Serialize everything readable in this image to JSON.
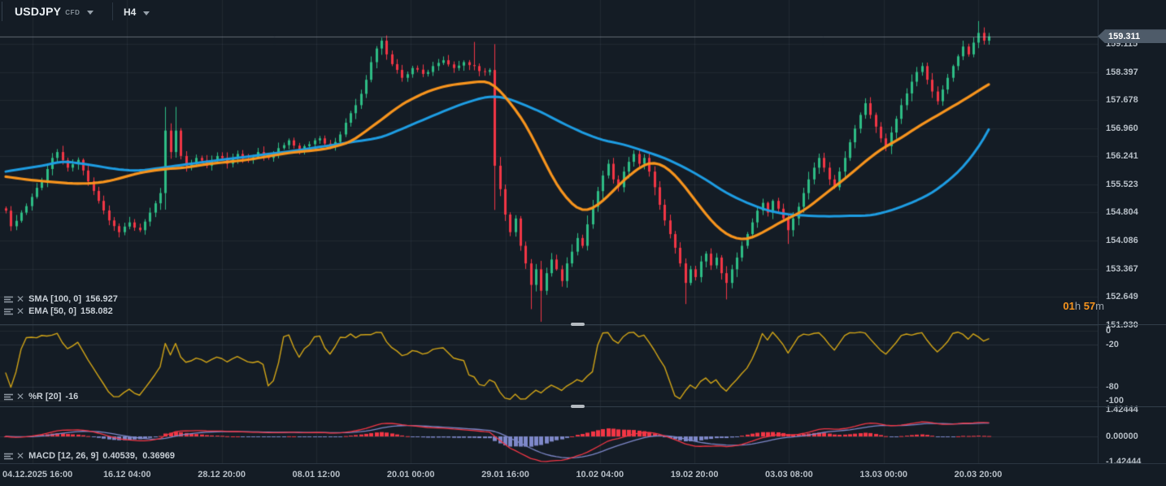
{
  "toolbar": {
    "symbol": "USDJPY",
    "symbol_type": "CFD",
    "timeframe": "H4"
  },
  "indicators": {
    "sma": {
      "label": "SMA [100, 0]",
      "value": "156.927"
    },
    "ema": {
      "label": "EMA [50, 0]",
      "value": "158.082"
    },
    "wpr": {
      "label": "%R [20]",
      "value": "-16"
    },
    "macd": {
      "label": "MACD [12, 26, 9]",
      "value": "0.40539,  0.36969"
    }
  },
  "countdown": {
    "h_val": "01",
    "h_unit": "h ",
    "m_val": "57",
    "m_unit": "m"
  },
  "price_axis": {
    "current_price": "159.311",
    "labels": [
      "159.115",
      "158.397",
      "157.678",
      "156.960",
      "156.241",
      "155.523",
      "154.804",
      "154.086",
      "153.367",
      "152.649",
      "151.930"
    ]
  },
  "wpr_axis": [
    [
      "0",
      0
    ],
    [
      "-20",
      -20
    ],
    [
      "-80",
      -80
    ],
    [
      "-100",
      -100
    ]
  ],
  "macd_axis": [
    [
      "1.42444",
      1.42444
    ],
    [
      "0.00000",
      0
    ],
    [
      "-1.42444",
      -1.42444
    ]
  ],
  "time_axis": [
    "04.12.2025 16:00",
    "16.12 04:00",
    "28.12 20:00",
    "08.01 12:00",
    "20.01 00:00",
    "29.01 16:00",
    "10.02 04:00",
    "19.02 20:00",
    "03.03 08:00",
    "13.03 00:00",
    "20.03 20:00"
  ],
  "colors": {
    "background": "#141c25",
    "grid": "rgba(160,176,192,0.09)",
    "grid_strong": "rgba(160,176,192,0.14)",
    "bull": "#2ebd85",
    "bear": "#f23645",
    "sma": "#1e9de3",
    "ema": "#f7941d",
    "wpr": "#d2a517",
    "macd_line": "#f23645",
    "macd_signal": "#7e88c9",
    "hist_pos": "#f23645",
    "hist_neg": "#7e88c9",
    "price_line": "rgba(190,200,210,0.45)",
    "price_tag_bg": "#4e5b69",
    "timer": "#f7941d"
  },
  "chart_data": {
    "type": "candlestick",
    "symbol": "USDJPY",
    "timeframe": "H4",
    "bars": 192,
    "price_axis_values": [
      159.115,
      158.397,
      157.678,
      156.96,
      156.241,
      155.523,
      154.804,
      154.086,
      153.367,
      152.649,
      151.93
    ],
    "current_price": 159.311,
    "overlays": [
      {
        "name": "SMA",
        "period": 100,
        "last": 156.927
      },
      {
        "name": "EMA",
        "period": 50,
        "last": 158.082
      }
    ],
    "wpr": {
      "period": 20,
      "last": -16,
      "scale": [
        0,
        -20,
        -80,
        -100
      ]
    },
    "macd": {
      "params": [
        12,
        26,
        9
      ],
      "last": 0.40539,
      "signal_last": 0.36969,
      "scale_max": 1.42444
    },
    "close_anchors": [
      [
        0,
        154.85
      ],
      [
        1,
        154.45
      ],
      [
        3,
        154.8
      ],
      [
        5,
        155.2
      ],
      [
        7,
        155.6
      ],
      [
        9,
        156.2
      ],
      [
        10,
        156.35
      ],
      [
        12,
        155.95
      ],
      [
        14,
        156.15
      ],
      [
        16,
        155.6
      ],
      [
        18,
        155.1
      ],
      [
        20,
        154.6
      ],
      [
        22,
        154.3
      ],
      [
        24,
        154.55
      ],
      [
        26,
        154.35
      ],
      [
        28,
        154.8
      ],
      [
        30,
        155.3
      ],
      [
        31,
        156.9
      ],
      [
        32,
        156.35
      ],
      [
        33,
        156.9
      ],
      [
        34,
        156.25
      ],
      [
        35,
        156.0
      ],
      [
        37,
        156.2
      ],
      [
        39,
        156.0
      ],
      [
        41,
        156.25
      ],
      [
        43,
        156.05
      ],
      [
        45,
        156.3
      ],
      [
        47,
        156.15
      ],
      [
        49,
        156.35
      ],
      [
        51,
        156.2
      ],
      [
        53,
        156.45
      ],
      [
        55,
        156.65
      ],
      [
        57,
        156.4
      ],
      [
        59,
        156.55
      ],
      [
        61,
        156.7
      ],
      [
        63,
        156.5
      ],
      [
        65,
        156.8
      ],
      [
        66,
        157.1
      ],
      [
        68,
        157.55
      ],
      [
        70,
        158.2
      ],
      [
        71,
        158.65
      ],
      [
        72,
        159.0
      ],
      [
        73,
        159.2
      ],
      [
        74,
        158.85
      ],
      [
        75,
        158.6
      ],
      [
        77,
        158.25
      ],
      [
        79,
        158.5
      ],
      [
        81,
        158.35
      ],
      [
        83,
        158.55
      ],
      [
        85,
        158.7
      ],
      [
        87,
        158.5
      ],
      [
        89,
        158.65
      ],
      [
        91,
        158.55
      ],
      [
        93,
        158.4
      ],
      [
        94,
        158.45
      ],
      [
        95,
        156.0
      ],
      [
        96,
        155.4
      ],
      [
        97,
        154.75
      ],
      [
        98,
        154.3
      ],
      [
        99,
        154.65
      ],
      [
        100,
        153.95
      ],
      [
        101,
        153.5
      ],
      [
        102,
        152.95
      ],
      [
        103,
        153.35
      ],
      [
        104,
        152.8
      ],
      [
        105,
        153.25
      ],
      [
        106,
        153.6
      ],
      [
        107,
        153.35
      ],
      [
        108,
        153.05
      ],
      [
        109,
        153.5
      ],
      [
        110,
        153.8
      ],
      [
        111,
        154.15
      ],
      [
        112,
        153.95
      ],
      [
        113,
        154.5
      ],
      [
        114,
        154.95
      ],
      [
        115,
        155.35
      ],
      [
        116,
        155.75
      ],
      [
        117,
        156.05
      ],
      [
        118,
        155.65
      ],
      [
        119,
        155.45
      ],
      [
        120,
        155.85
      ],
      [
        121,
        156.1
      ],
      [
        122,
        156.3
      ],
      [
        123,
        156.05
      ],
      [
        124,
        156.2
      ],
      [
        125,
        155.85
      ],
      [
        126,
        155.45
      ],
      [
        127,
        155.0
      ],
      [
        128,
        154.6
      ],
      [
        129,
        154.25
      ],
      [
        130,
        153.9
      ],
      [
        131,
        153.5
      ],
      [
        132,
        153.0
      ],
      [
        133,
        153.35
      ],
      [
        134,
        153.15
      ],
      [
        135,
        153.55
      ],
      [
        136,
        153.75
      ],
      [
        137,
        153.45
      ],
      [
        138,
        153.65
      ],
      [
        139,
        153.25
      ],
      [
        140,
        153.0
      ],
      [
        141,
        153.35
      ],
      [
        142,
        153.65
      ],
      [
        143,
        153.95
      ],
      [
        144,
        154.25
      ],
      [
        145,
        154.55
      ],
      [
        146,
        154.85
      ],
      [
        147,
        155.05
      ],
      [
        148,
        154.8
      ],
      [
        149,
        155.1
      ],
      [
        150,
        154.9
      ],
      [
        151,
        154.65
      ],
      [
        152,
        154.35
      ],
      [
        153,
        154.65
      ],
      [
        154,
        154.95
      ],
      [
        155,
        155.3
      ],
      [
        156,
        155.65
      ],
      [
        157,
        155.95
      ],
      [
        158,
        156.2
      ],
      [
        159,
        155.95
      ],
      [
        160,
        155.65
      ],
      [
        161,
        155.45
      ],
      [
        162,
        155.85
      ],
      [
        163,
        156.2
      ],
      [
        164,
        156.6
      ],
      [
        165,
        156.95
      ],
      [
        166,
        157.3
      ],
      [
        167,
        157.6
      ],
      [
        168,
        157.3
      ],
      [
        169,
        157.0
      ],
      [
        170,
        156.7
      ],
      [
        171,
        156.5
      ],
      [
        172,
        156.85
      ],
      [
        173,
        157.2
      ],
      [
        174,
        157.55
      ],
      [
        175,
        157.85
      ],
      [
        176,
        158.15
      ],
      [
        177,
        158.4
      ],
      [
        178,
        158.55
      ],
      [
        179,
        158.2
      ],
      [
        180,
        157.9
      ],
      [
        181,
        157.65
      ],
      [
        182,
        157.95
      ],
      [
        183,
        158.25
      ],
      [
        184,
        158.55
      ],
      [
        185,
        158.8
      ],
      [
        186,
        159.05
      ],
      [
        187,
        158.85
      ],
      [
        188,
        159.15
      ],
      [
        189,
        159.4
      ],
      [
        190,
        159.2
      ],
      [
        191,
        159.311
      ]
    ],
    "wick_events": [
      [
        31,
        1,
        0.5
      ],
      [
        33,
        1,
        0.45
      ],
      [
        91,
        1,
        0.5
      ],
      [
        95,
        -1,
        0.45
      ],
      [
        102,
        -1,
        0.5
      ],
      [
        104,
        -1,
        0.6
      ],
      [
        132,
        -1,
        0.45
      ],
      [
        140,
        -1,
        0.35
      ],
      [
        152,
        -1,
        0.2
      ],
      [
        189,
        1,
        0.2
      ]
    ],
    "sma_anchors": [
      [
        0,
        155.85
      ],
      [
        8,
        156.02
      ],
      [
        11,
        156.12
      ],
      [
        15,
        156.05
      ],
      [
        22,
        155.9
      ],
      [
        26,
        155.87
      ],
      [
        32,
        155.98
      ],
      [
        40,
        156.12
      ],
      [
        48,
        156.25
      ],
      [
        56,
        156.38
      ],
      [
        62,
        156.5
      ],
      [
        68,
        156.62
      ],
      [
        73,
        156.72
      ],
      [
        78,
        157.0
      ],
      [
        83,
        157.28
      ],
      [
        88,
        157.55
      ],
      [
        92,
        157.72
      ],
      [
        94,
        157.78
      ],
      [
        97,
        157.75
      ],
      [
        100,
        157.6
      ],
      [
        104,
        157.38
      ],
      [
        108,
        157.1
      ],
      [
        112,
        156.85
      ],
      [
        116,
        156.65
      ],
      [
        120,
        156.55
      ],
      [
        124,
        156.38
      ],
      [
        128,
        156.2
      ],
      [
        132,
        155.95
      ],
      [
        136,
        155.65
      ],
      [
        140,
        155.3
      ],
      [
        144,
        155.05
      ],
      [
        148,
        154.85
      ],
      [
        152,
        154.75
      ],
      [
        156,
        154.72
      ],
      [
        160,
        154.7
      ],
      [
        164,
        154.72
      ],
      [
        168,
        154.72
      ],
      [
        172,
        154.85
      ],
      [
        176,
        155.05
      ],
      [
        180,
        155.3
      ],
      [
        183,
        155.6
      ],
      [
        186,
        155.95
      ],
      [
        188,
        156.3
      ],
      [
        190,
        156.65
      ],
      [
        191,
        156.927
      ]
    ],
    "ema_anchors": [
      [
        0,
        155.72
      ],
      [
        5,
        155.63
      ],
      [
        13,
        155.54
      ],
      [
        17,
        155.55
      ],
      [
        20,
        155.6
      ],
      [
        26,
        155.82
      ],
      [
        31,
        155.92
      ],
      [
        35,
        155.95
      ],
      [
        39,
        156.04
      ],
      [
        47,
        156.15
      ],
      [
        55,
        156.33
      ],
      [
        62,
        156.42
      ],
      [
        67,
        156.6
      ],
      [
        72,
        157.08
      ],
      [
        77,
        157.58
      ],
      [
        82,
        157.91
      ],
      [
        86,
        158.06
      ],
      [
        91,
        158.14
      ],
      [
        94,
        158.18
      ],
      [
        97,
        157.79
      ],
      [
        101,
        157.08
      ],
      [
        104,
        156.29
      ],
      [
        107,
        155.5
      ],
      [
        110,
        155.0
      ],
      [
        112,
        154.82
      ],
      [
        114,
        154.88
      ],
      [
        117,
        155.21
      ],
      [
        120,
        155.63
      ],
      [
        123,
        155.94
      ],
      [
        125,
        156.11
      ],
      [
        128,
        156.02
      ],
      [
        131,
        155.63
      ],
      [
        134,
        155.11
      ],
      [
        137,
        154.59
      ],
      [
        140,
        154.23
      ],
      [
        143,
        154.09
      ],
      [
        145,
        154.15
      ],
      [
        148,
        154.36
      ],
      [
        151,
        154.59
      ],
      [
        155,
        154.84
      ],
      [
        158,
        155.15
      ],
      [
        161,
        155.46
      ],
      [
        164,
        155.77
      ],
      [
        167,
        156.11
      ],
      [
        170,
        156.42
      ],
      [
        174,
        156.71
      ],
      [
        177,
        156.98
      ],
      [
        180,
        157.21
      ],
      [
        183,
        157.44
      ],
      [
        186,
        157.67
      ],
      [
        189,
        157.92
      ],
      [
        191,
        158.082
      ]
    ]
  }
}
